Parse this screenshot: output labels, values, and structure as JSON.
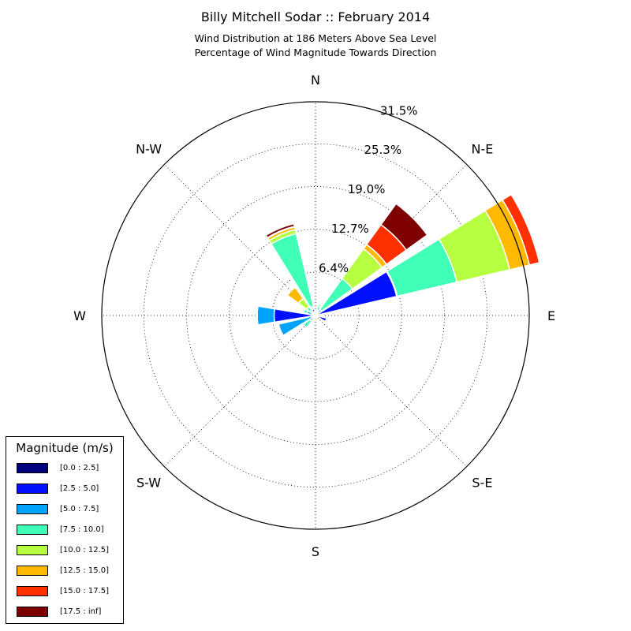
{
  "title": "Billy Mitchell Sodar :: February 2014",
  "subtitle_lines": [
    "Wind Distribution at 186 Meters Above Sea Level",
    "Percentage of Wind Magnitude Towards Direction"
  ],
  "legend": {
    "title": "Magnitude (m/s)",
    "items": [
      {
        "label": "[0.0 : 2.5]",
        "color": "#00007f"
      },
      {
        "label": "[2.5 : 5.0]",
        "color": "#0010ff"
      },
      {
        "label": "[5.0 : 7.5]",
        "color": "#00a4ff"
      },
      {
        "label": "[7.5 : 10.0]",
        "color": "#40ffb6"
      },
      {
        "label": "[10.0 : 12.5]",
        "color": "#b6ff40"
      },
      {
        "label": "[12.5 : 15.0]",
        "color": "#ffb900"
      },
      {
        "label": "[15.0 : 17.5]",
        "color": "#ff3000"
      },
      {
        "label": "[17.5 : inf]",
        "color": "#7f0000"
      }
    ]
  },
  "chart_data": {
    "type": "polar-stacked-bar",
    "title": "Billy Mitchell Sodar :: February 2014",
    "direction_labels": [
      "N",
      "N-E",
      "E",
      "S-E",
      "S",
      "S-W",
      "W",
      "N-W"
    ],
    "radial_ticks": [
      "6.4%",
      "12.7%",
      "19.0%",
      "25.3%",
      "31.5%"
    ],
    "radial_max": 31.5,
    "directions_deg": [
      0,
      22.5,
      45,
      67.5,
      90,
      112.5,
      135,
      157.5,
      180,
      202.5,
      225,
      247.5,
      270,
      292.5,
      315,
      337.5
    ],
    "series": [
      {
        "name": "[0.0 : 2.5]",
        "values": [
          0.2,
          0.4,
          0.3,
          0.3,
          0.3,
          0.2,
          0.1,
          0.1,
          0.1,
          0.1,
          0.1,
          0.1,
          0.1,
          0.1,
          0.2,
          1.0
        ]
      },
      {
        "name": "[2.5 : 5.0]",
        "values": [
          0.1,
          0.2,
          0.4,
          12.0,
          0.5,
          1.5,
          0.1,
          0.1,
          0.1,
          0.1,
          0.2,
          0.5,
          6.0,
          0.4,
          0.1,
          0.2
        ]
      },
      {
        "name": "[5.0 : 7.5]",
        "values": [
          0.1,
          0.2,
          0.4,
          0.1,
          0.1,
          0.1,
          0.1,
          0.1,
          0.1,
          0.4,
          0.7,
          5.0,
          2.5,
          0.8,
          0.5,
          0.2
        ]
      },
      {
        "name": "[7.5 : 10.0]",
        "values": [
          0.1,
          0.6,
          5.6,
          9.0,
          0.1,
          0.1,
          0.1,
          0.1,
          0.1,
          0.1,
          1.2,
          0.1,
          0.1,
          0.5,
          0.8,
          11.0
        ]
      },
      {
        "name": "[10.0 : 12.5]",
        "values": [
          0,
          0.3,
          5.4,
          8.0,
          0,
          0,
          0,
          0,
          0,
          0,
          0,
          0,
          0,
          0,
          1.5,
          0.6
        ]
      },
      {
        "name": "[12.5 : 15.0]",
        "values": [
          0,
          0,
          0.8,
          3.0,
          0,
          0,
          0,
          0,
          0,
          0,
          0,
          0,
          0,
          0,
          2.0,
          0.4
        ]
      },
      {
        "name": "[15.0 : 17.5]",
        "values": [
          0,
          0,
          3.6,
          1.5,
          0,
          0,
          0,
          0,
          0,
          0,
          0,
          0,
          0,
          0,
          0,
          0.1
        ]
      },
      {
        "name": "[17.5 : inf]",
        "values": [
          0,
          0,
          3.8,
          0,
          0,
          0,
          0,
          0,
          0,
          0,
          0,
          0,
          0,
          0,
          0,
          0.4
        ]
      }
    ],
    "grid": true,
    "legend_position": "bottom-left"
  }
}
